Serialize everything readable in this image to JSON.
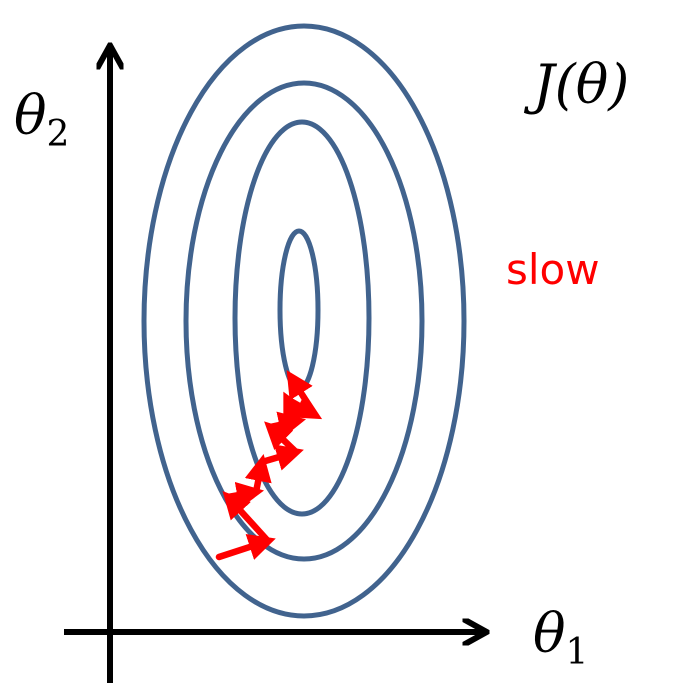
{
  "labels": {
    "y_axis_symbol": "θ",
    "y_axis_subscript": "2",
    "x_axis_symbol": "θ",
    "x_axis_subscript": "1",
    "cost_function": "J(θ)",
    "slow": "slow"
  },
  "colors": {
    "axes": "#000000",
    "contours": "#41638e",
    "path": "#ff0000",
    "slow_text": "#ff0000"
  },
  "contour_count": 4,
  "path_steps": 10
}
